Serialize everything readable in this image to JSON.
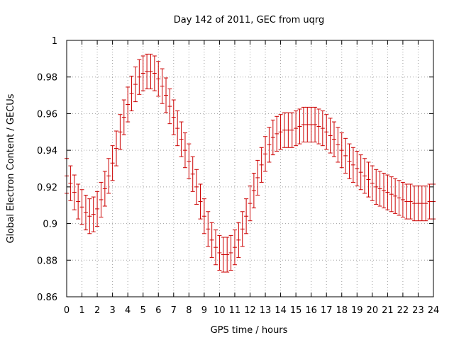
{
  "chart_data": {
    "type": "scatter",
    "title": "Day 142 of 2011, GEC from uqrg",
    "xlabel": "GPS time / hours",
    "ylabel": "Global Electron Content / GECUs",
    "xlim": [
      0,
      24
    ],
    "ylim": [
      0.86,
      1.0
    ],
    "x_ticks": [
      "0",
      "1",
      "2",
      "3",
      "4",
      "5",
      "6",
      "7",
      "8",
      "9",
      "10",
      "11",
      "12",
      "13",
      "14",
      "15",
      "16",
      "17",
      "18",
      "19",
      "20",
      "21",
      "22",
      "23",
      "24"
    ],
    "y_ticks": [
      "0.86",
      "0.88",
      "0.9",
      "0.92",
      "0.94",
      "0.96",
      "0.98",
      "1"
    ],
    "grid": true,
    "series": [
      {
        "color": "#cc0000",
        "error_bars": true,
        "error": 0.0095,
        "x": [
          0,
          0.25,
          0.5,
          0.75,
          1,
          1.25,
          1.5,
          1.75,
          2,
          2.25,
          2.5,
          2.75,
          3,
          3.25,
          3.5,
          3.75,
          4,
          4.25,
          4.5,
          4.75,
          5,
          5.25,
          5.5,
          5.75,
          6,
          6.25,
          6.5,
          6.75,
          7,
          7.25,
          7.5,
          7.75,
          8,
          8.25,
          8.5,
          8.75,
          9,
          9.25,
          9.5,
          9.75,
          10,
          10.25,
          10.5,
          10.75,
          11,
          11.25,
          11.5,
          11.75,
          12,
          12.25,
          12.5,
          12.75,
          13,
          13.25,
          13.5,
          13.75,
          14,
          14.25,
          14.5,
          14.75,
          15,
          15.25,
          15.5,
          15.75,
          16,
          16.25,
          16.5,
          16.75,
          17,
          17.25,
          17.5,
          17.75,
          18,
          18.25,
          18.5,
          18.75,
          19,
          19.25,
          19.5,
          19.75,
          20,
          20.25,
          20.5,
          20.75,
          21,
          21.25,
          21.5,
          21.75,
          22,
          22.25,
          22.5,
          22.75,
          23,
          23.25,
          23.5,
          23.75,
          24
        ],
        "y": [
          0.926,
          0.922,
          0.917,
          0.912,
          0.909,
          0.906,
          0.904,
          0.905,
          0.908,
          0.913,
          0.919,
          0.926,
          0.933,
          0.941,
          0.95,
          0.958,
          0.965,
          0.971,
          0.976,
          0.98,
          0.982,
          0.983,
          0.983,
          0.982,
          0.979,
          0.975,
          0.97,
          0.964,
          0.958,
          0.952,
          0.946,
          0.94,
          0.934,
          0.927,
          0.92,
          0.912,
          0.904,
          0.897,
          0.891,
          0.887,
          0.884,
          0.883,
          0.883,
          0.884,
          0.887,
          0.891,
          0.897,
          0.904,
          0.911,
          0.918,
          0.925,
          0.932,
          0.938,
          0.943,
          0.947,
          0.949,
          0.95,
          0.951,
          0.951,
          0.951,
          0.952,
          0.953,
          0.954,
          0.954,
          0.954,
          0.954,
          0.953,
          0.952,
          0.95,
          0.948,
          0.946,
          0.943,
          0.94,
          0.937,
          0.934,
          0.932,
          0.93,
          0.928,
          0.926,
          0.924,
          0.922,
          0.92,
          0.919,
          0.918,
          0.917,
          0.916,
          0.915,
          0.914,
          0.913,
          0.912,
          0.912,
          0.911,
          0.911,
          0.911,
          0.911,
          0.912,
          0.912
        ]
      }
    ]
  }
}
